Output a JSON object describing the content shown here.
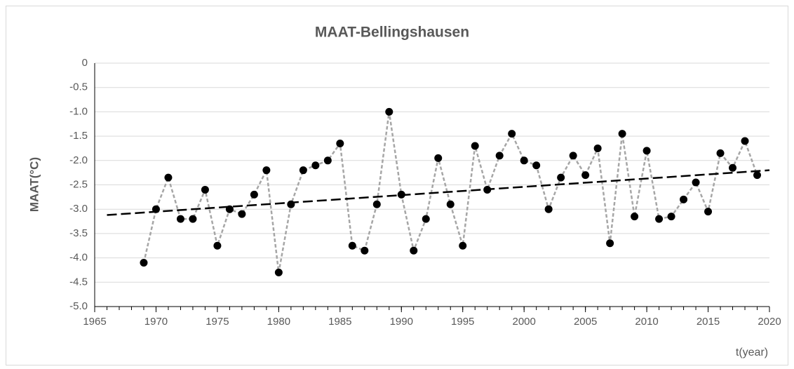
{
  "chart_data": {
    "type": "line",
    "title": "MAAT-Bellingshausen",
    "x_label": "t(year)",
    "y_label": "MAAT(°C)",
    "x": [
      1969,
      1970,
      1971,
      1972,
      1973,
      1974,
      1975,
      1976,
      1977,
      1978,
      1979,
      1980,
      1981,
      1982,
      1983,
      1984,
      1985,
      1986,
      1987,
      1988,
      1989,
      1990,
      1991,
      1992,
      1993,
      1994,
      1995,
      1996,
      1997,
      1998,
      1999,
      2000,
      2001,
      2002,
      2003,
      2004,
      2005,
      2006,
      2007,
      2008,
      2009,
      2010,
      2011,
      2012,
      2013,
      2014,
      2015,
      2016,
      2017,
      2018,
      2019
    ],
    "series": [
      {
        "color": "#a6a6a6",
        "marker_color": "#000000",
        "values": [
          -4.1,
          -3.0,
          -2.35,
          -3.2,
          -3.2,
          -2.6,
          -3.75,
          -3.0,
          -3.1,
          -2.7,
          -2.2,
          -4.3,
          -2.9,
          -2.2,
          -2.1,
          -2.0,
          -1.65,
          -3.75,
          -3.85,
          -2.9,
          -1.0,
          -2.7,
          -3.85,
          -3.2,
          -1.95,
          -2.9,
          -3.75,
          -1.7,
          -2.6,
          -1.9,
          -1.45,
          -2.0,
          -2.1,
          -3.0,
          -2.35,
          -1.9,
          -2.3,
          -1.75,
          -3.7,
          -1.45,
          -3.15,
          -1.8,
          -3.2,
          -3.15,
          -2.8,
          -2.45,
          -3.05,
          -1.85,
          -2.15,
          -1.6,
          -2.3
        ]
      }
    ],
    "trendline": {
      "x": [
        1966,
        2020
      ],
      "values": [
        -3.12,
        -2.2
      ],
      "color": "#000000"
    },
    "xlim": [
      1965,
      2020
    ],
    "xticks": [
      1965,
      1970,
      1975,
      1980,
      1985,
      1990,
      1995,
      2000,
      2005,
      2010,
      2015,
      2020
    ],
    "ylim": [
      -5.0,
      0
    ],
    "yticks": [
      0,
      -0.5,
      {
        "value": -1.0,
        "label": "-1.0"
      },
      -1.5,
      {
        "value": -2.0,
        "label": "-2.0"
      },
      -2.5,
      {
        "value": -3.0,
        "label": "-3.0"
      },
      -3.5,
      {
        "value": -4.0,
        "label": "-4.0"
      },
      -4.5,
      {
        "value": -5.0,
        "label": "-5.0"
      }
    ],
    "grid": true
  }
}
